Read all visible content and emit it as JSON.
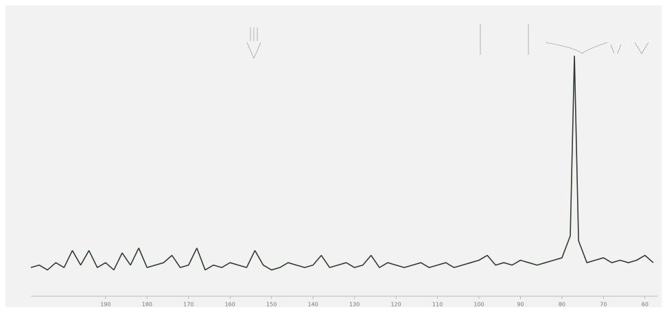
{
  "chart_data": {
    "type": "line",
    "x": [
      208,
      206,
      204,
      202,
      200,
      198,
      196,
      194,
      192,
      190,
      188,
      186,
      184,
      182,
      180,
      178,
      176,
      174,
      172,
      170,
      168,
      166,
      164,
      162,
      160,
      158,
      156,
      154,
      152,
      150,
      148,
      146,
      144,
      142,
      140,
      138,
      136,
      134,
      132,
      130,
      128,
      126,
      124,
      122,
      120,
      118,
      116,
      114,
      112,
      110,
      108,
      106,
      104,
      102,
      100,
      98,
      96,
      94,
      92,
      90,
      88,
      86,
      84,
      82,
      80,
      78,
      77,
      76,
      74,
      72,
      70,
      68,
      66,
      64,
      62,
      60,
      58
    ],
    "values": [
      7,
      8,
      6,
      9,
      7,
      14,
      8,
      14,
      7,
      9,
      6,
      13,
      8,
      15,
      7,
      8,
      9,
      12,
      7,
      8,
      15,
      6,
      8,
      7,
      9,
      8,
      7,
      14,
      8,
      6,
      7,
      9,
      8,
      7,
      8,
      12,
      7,
      8,
      9,
      7,
      8,
      12,
      7,
      9,
      8,
      7,
      8,
      9,
      7,
      8,
      9,
      7,
      8,
      9,
      10,
      12,
      8,
      9,
      8,
      10,
      9,
      8,
      9,
      10,
      11,
      20,
      94,
      18,
      9,
      10,
      11,
      9,
      10,
      9,
      10,
      12,
      9
    ],
    "color": "#2f3a2f",
    "xlim": [
      208,
      57
    ],
    "ylim": [
      0,
      100
    ],
    "xticks": [
      190,
      180,
      170,
      160,
      150,
      140,
      130,
      120,
      110,
      100,
      90,
      80,
      70,
      60
    ]
  }
}
